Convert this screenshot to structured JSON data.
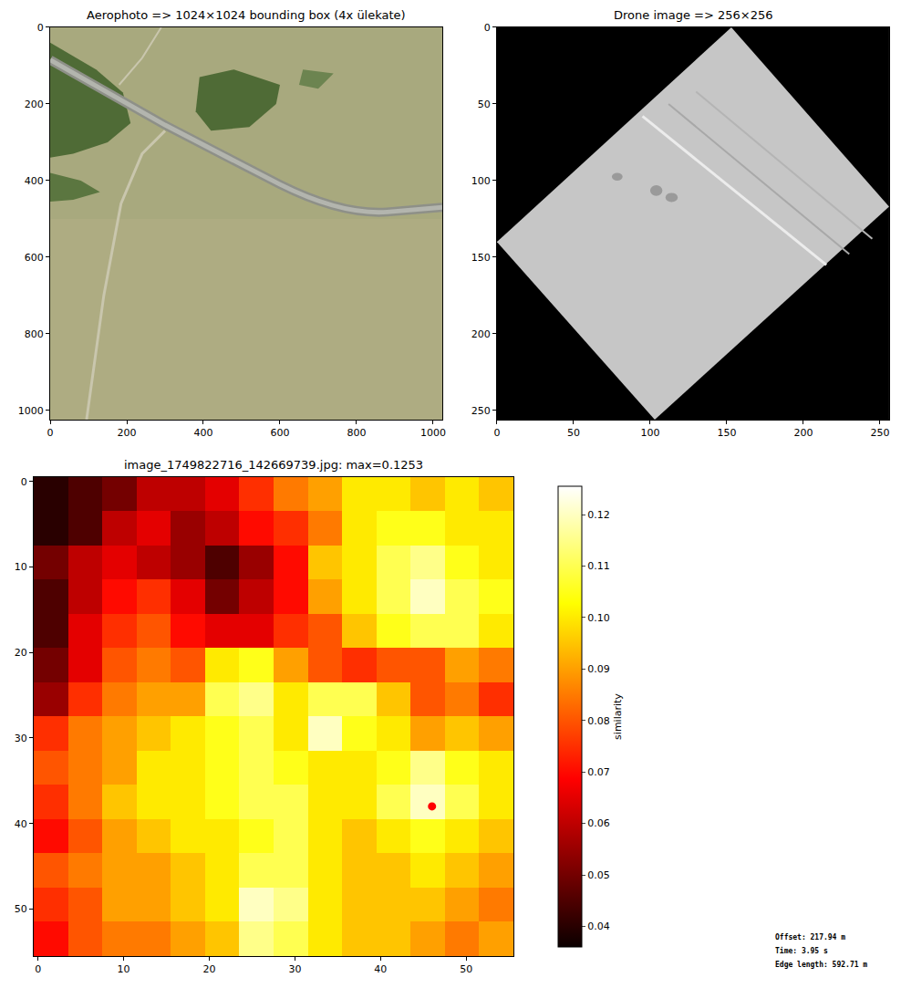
{
  "chart_data": [
    {
      "type": "image",
      "title": "Aerophoto => 1024×1024 bounding box (4x ülekate)",
      "xlim": [
        0,
        1024
      ],
      "ylim": [
        1024,
        0
      ],
      "xticks": [
        0,
        200,
        400,
        600,
        800,
        1000
      ],
      "yticks": [
        0,
        200,
        400,
        600,
        800,
        1000
      ]
    },
    {
      "type": "image",
      "title": "Drone image => 256×256",
      "xlim": [
        0,
        256
      ],
      "ylim": [
        256,
        0
      ],
      "xticks": [
        0,
        50,
        100,
        150,
        200,
        250
      ],
      "yticks": [
        0,
        50,
        100,
        150,
        200,
        250
      ]
    },
    {
      "type": "heatmap",
      "title": "image_1749822716_142669739.jpg: max=0.1253",
      "x": [
        1.5,
        5.5,
        9.5,
        13.5,
        17.5,
        21.5,
        25.5,
        29.5,
        33.5,
        37.5,
        41.5,
        45.5,
        49.5,
        53.5
      ],
      "y": [
        1.5,
        5.5,
        9.5,
        13.5,
        17.5,
        21.5,
        25.5,
        29.5,
        33.5,
        37.5,
        41.5,
        45.5,
        49.5,
        53.5
      ],
      "cells": [
        [
          0.04,
          0.045,
          0.05,
          0.06,
          0.06,
          0.065,
          0.075,
          0.085,
          0.09,
          0.1,
          0.1,
          0.095,
          0.1,
          0.095
        ],
        [
          0.04,
          0.045,
          0.06,
          0.065,
          0.055,
          0.06,
          0.07,
          0.075,
          0.085,
          0.1,
          0.105,
          0.105,
          0.1,
          0.1
        ],
        [
          0.05,
          0.06,
          0.065,
          0.06,
          0.055,
          0.045,
          0.055,
          0.07,
          0.095,
          0.1,
          0.11,
          0.115,
          0.105,
          0.1
        ],
        [
          0.045,
          0.06,
          0.07,
          0.075,
          0.065,
          0.05,
          0.06,
          0.07,
          0.09,
          0.1,
          0.11,
          0.12,
          0.11,
          0.105
        ],
        [
          0.045,
          0.065,
          0.075,
          0.08,
          0.07,
          0.065,
          0.065,
          0.075,
          0.08,
          0.095,
          0.105,
          0.11,
          0.11,
          0.1
        ],
        [
          0.05,
          0.065,
          0.08,
          0.085,
          0.08,
          0.1,
          0.105,
          0.09,
          0.08,
          0.075,
          0.08,
          0.08,
          0.09,
          0.085
        ],
        [
          0.055,
          0.075,
          0.085,
          0.09,
          0.09,
          0.11,
          0.115,
          0.1,
          0.11,
          0.11,
          0.095,
          0.08,
          0.085,
          0.075
        ],
        [
          0.075,
          0.085,
          0.09,
          0.095,
          0.1,
          0.105,
          0.11,
          0.1,
          0.12,
          0.105,
          0.1,
          0.09,
          0.095,
          0.09
        ],
        [
          0.08,
          0.085,
          0.09,
          0.1,
          0.1,
          0.105,
          0.11,
          0.105,
          0.1,
          0.1,
          0.105,
          0.115,
          0.105,
          0.1
        ],
        [
          0.075,
          0.085,
          0.095,
          0.1,
          0.1,
          0.105,
          0.11,
          0.11,
          0.1,
          0.1,
          0.11,
          0.12,
          0.11,
          0.1
        ],
        [
          0.07,
          0.08,
          0.09,
          0.095,
          0.1,
          0.1,
          0.105,
          0.11,
          0.1,
          0.095,
          0.1,
          0.105,
          0.1,
          0.095
        ],
        [
          0.08,
          0.085,
          0.09,
          0.09,
          0.095,
          0.1,
          0.11,
          0.11,
          0.1,
          0.095,
          0.095,
          0.1,
          0.095,
          0.09
        ],
        [
          0.075,
          0.08,
          0.09,
          0.09,
          0.095,
          0.1,
          0.12,
          0.115,
          0.1,
          0.095,
          0.095,
          0.095,
          0.09,
          0.085
        ],
        [
          0.07,
          0.08,
          0.085,
          0.085,
          0.09,
          0.095,
          0.115,
          0.11,
          0.1,
          0.095,
          0.095,
          0.09,
          0.085,
          0.09
        ]
      ],
      "xlim": [
        -0.5,
        55.5
      ],
      "ylim": [
        55.5,
        -0.5
      ],
      "xticks": [
        0,
        10,
        20,
        30,
        40,
        50
      ],
      "yticks": [
        0,
        10,
        20,
        30,
        40,
        50
      ],
      "colorbar": {
        "label": "similarity",
        "range": [
          0.036,
          0.1255
        ],
        "ticks": [
          0.04,
          0.05,
          0.06,
          0.07,
          0.08,
          0.09,
          {
            "value": 0.1,
            "label": "0.10"
          },
          0.11,
          0.12
        ]
      },
      "max_point": {
        "x": 46,
        "y": 38,
        "color": "red"
      },
      "annotations": [
        "Offset: 217.94 m",
        "Time: 3.95 s",
        "Edge length: 592.71 m"
      ]
    }
  ]
}
